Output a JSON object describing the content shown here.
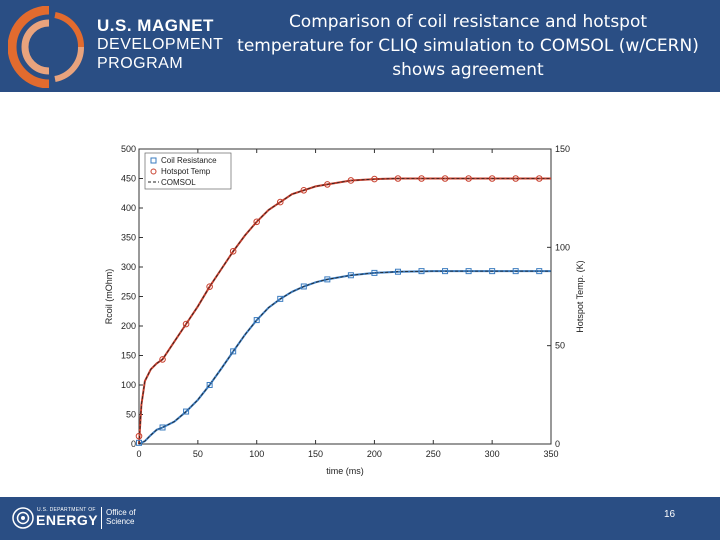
{
  "header": {
    "logo_lines": [
      "U.S. MAGNET",
      "DEVELOPMENT",
      "PROGRAM"
    ],
    "title_lines": [
      "Comparison of coil resistance and hotspot",
      "temperature for CLIQ simulation to COMSOL (w/CERN)",
      "shows agreement"
    ]
  },
  "footer": {
    "doe_small": "U.S. DEPARTMENT OF",
    "doe_big": "ENERGY",
    "office_lines": [
      "Office of",
      "Science"
    ],
    "page_number": "16"
  },
  "colors": {
    "brand_blue": "#2a4e84",
    "logo_orange": "#e26b2e",
    "resistance_blue": "#3a7bbf",
    "hotspot_red": "#c8402e",
    "comsol_black": "#222222"
  },
  "chart_data": {
    "type": "line",
    "xlabel": "time (ms)",
    "ylabel": "Rcoil (mOhm)",
    "y2label": "Hotspot Temp. (K)",
    "xlim": [
      0,
      350
    ],
    "ylim": [
      0,
      500
    ],
    "y2lim": [
      0,
      150
    ],
    "x_ticks": [
      0,
      50,
      100,
      150,
      200,
      250,
      300,
      350
    ],
    "y_ticks": [
      0,
      50,
      100,
      150,
      200,
      250,
      300,
      350,
      400,
      450,
      500
    ],
    "y2_ticks": [
      0,
      50,
      100,
      150
    ],
    "legend_position": "top-left",
    "legend": [
      "Coil Resistance",
      "Hotspot Temp",
      "COMSOL"
    ],
    "series": [
      {
        "name": "Coil Resistance",
        "axis": "left",
        "marker": "square",
        "x": [
          0,
          20,
          40,
          60,
          80,
          100,
          120,
          140,
          160,
          180,
          200,
          220,
          240,
          260,
          280,
          300,
          320,
          340
        ],
        "values": [
          2,
          28,
          55,
          100,
          157,
          210,
          246,
          267,
          279,
          286,
          290,
          292,
          293,
          293,
          293,
          293,
          293,
          293
        ]
      },
      {
        "name": "Hotspot Temp",
        "axis": "right",
        "marker": "circle",
        "x": [
          0,
          20,
          40,
          60,
          80,
          100,
          120,
          140,
          160,
          180,
          200,
          220,
          240,
          260,
          280,
          300,
          320,
          340
        ],
        "values": [
          4,
          43,
          61,
          80,
          98,
          113,
          123,
          129,
          132,
          134,
          134.7,
          135,
          135,
          135,
          135,
          135,
          135,
          135
        ]
      },
      {
        "name": "COMSOL Resistance",
        "axis": "left",
        "x": [
          0,
          5,
          10,
          15,
          20,
          30,
          40,
          50,
          60,
          70,
          80,
          90,
          100,
          110,
          120,
          130,
          140,
          150,
          160,
          180,
          200,
          220,
          250,
          300,
          350
        ],
        "values": [
          0,
          5,
          15,
          24,
          28,
          38,
          55,
          75,
          100,
          128,
          157,
          185,
          210,
          231,
          246,
          258,
          267,
          274,
          279,
          286,
          290,
          292,
          293,
          293,
          293
        ]
      },
      {
        "name": "COMSOL Hotspot",
        "axis": "right",
        "x": [
          0,
          2,
          5,
          10,
          15,
          20,
          30,
          40,
          50,
          60,
          70,
          80,
          90,
          100,
          110,
          120,
          130,
          140,
          150,
          160,
          180,
          200,
          220,
          250,
          300,
          350
        ],
        "values": [
          0,
          20,
          32,
          38,
          41,
          43,
          52,
          61,
          70,
          80,
          89,
          98,
          106,
          113,
          119,
          123,
          127,
          129,
          131,
          132,
          134,
          134.7,
          135,
          135,
          135,
          135
        ]
      }
    ]
  }
}
